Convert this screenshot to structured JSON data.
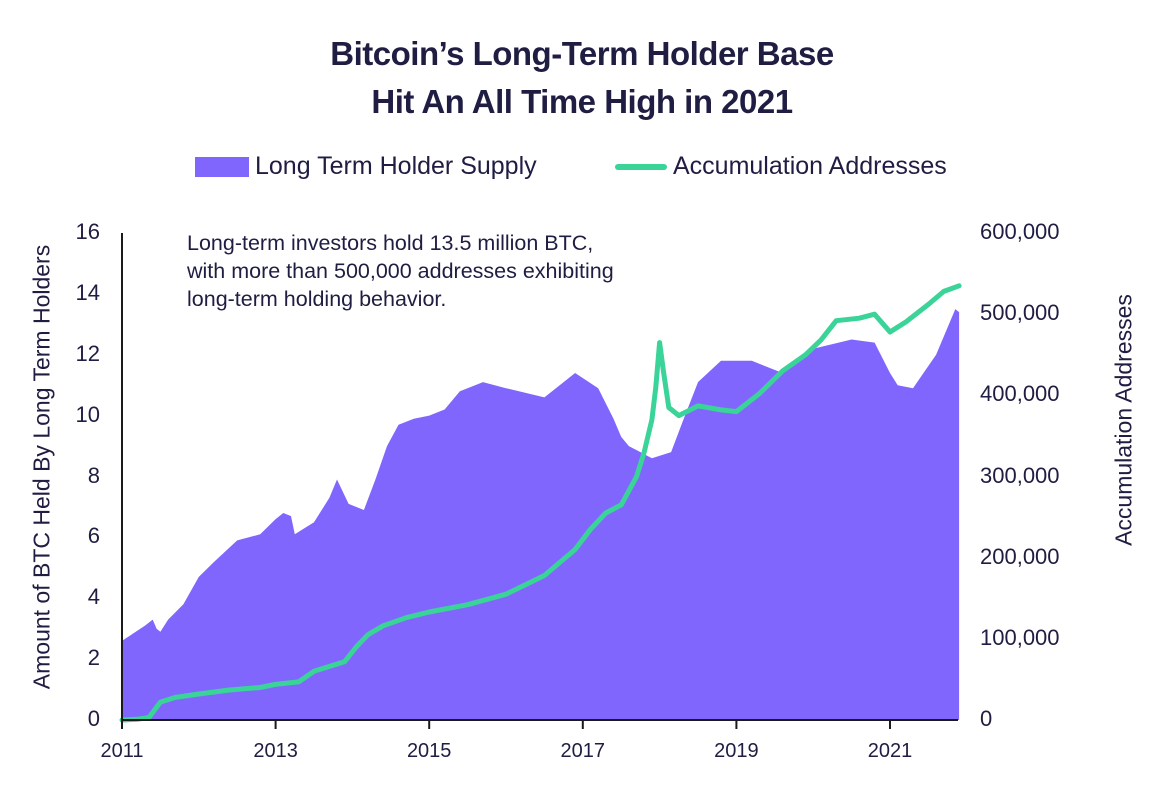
{
  "chart_data": {
    "type": "area+line",
    "title": [
      "Bitcoin’s Long-Term Holder Base",
      "Hit An All Time High in 2021"
    ],
    "legend": {
      "placement": "top-center",
      "entries": [
        "Long Term Holder Supply",
        "Accumulation Addresses"
      ]
    },
    "annotation": [
      "Long-term investors hold 13.5 million BTC,",
      "with more than 500,000 addresses exhibiting",
      "long-term holding behavior."
    ],
    "xlabel": "",
    "ylabel_left": "Amount of BTC Held By Long Term Holders",
    "ylabel_right": "Accumulation Addresses",
    "xlim": [
      2011,
      2021.9
    ],
    "ylim_left": [
      0,
      16
    ],
    "ylim_right": [
      0,
      600000
    ],
    "x_ticks": [
      "2011",
      "2013",
      "2015",
      "2017",
      "2019",
      "2021"
    ],
    "x_tick_values": [
      2011,
      2013,
      2015,
      2017,
      2019,
      2021
    ],
    "y_ticks_left": [
      "0",
      "2",
      "4",
      "6",
      "8",
      "10",
      "12",
      "14",
      "16"
    ],
    "y_tick_values_left": [
      0,
      2,
      4,
      6,
      8,
      10,
      12,
      14,
      16
    ],
    "y_ticks_right": [
      "0",
      "100,000",
      "200,000",
      "300,000",
      "400,000",
      "500,000",
      "600,000"
    ],
    "y_tick_values_right": [
      0,
      100000,
      200000,
      300000,
      400000,
      500000,
      600000
    ],
    "grid": false,
    "colors": {
      "supply": "#8166fd",
      "addresses": "#3ad398",
      "text": "#1f1d42",
      "axis": "#1a1a1a"
    },
    "series": [
      {
        "name": "Long Term Holder Supply",
        "axis": "left",
        "type": "area",
        "x": [
          2011.0,
          2011.15,
          2011.3,
          2011.4,
          2011.45,
          2011.5,
          2011.6,
          2011.8,
          2012.0,
          2012.2,
          2012.5,
          2012.8,
          2013.0,
          2013.1,
          2013.2,
          2013.25,
          2013.5,
          2013.7,
          2013.8,
          2013.95,
          2014.15,
          2014.3,
          2014.45,
          2014.6,
          2014.8,
          2015.0,
          2015.2,
          2015.4,
          2015.7,
          2016.0,
          2016.5,
          2016.9,
          2017.2,
          2017.4,
          2017.5,
          2017.6,
          2017.9,
          2018.15,
          2018.3,
          2018.5,
          2018.8,
          2019.2,
          2019.6,
          2020.0,
          2020.5,
          2020.8,
          2021.0,
          2021.1,
          2021.3,
          2021.6,
          2021.85,
          2021.9
        ],
        "values": [
          2.6,
          2.85,
          3.1,
          3.3,
          3.0,
          2.9,
          3.3,
          3.8,
          4.7,
          5.2,
          5.9,
          6.1,
          6.6,
          6.8,
          6.7,
          6.1,
          6.5,
          7.3,
          7.9,
          7.1,
          6.9,
          7.9,
          9.0,
          9.7,
          9.9,
          10.0,
          10.2,
          10.8,
          11.1,
          10.9,
          10.6,
          11.4,
          10.9,
          9.9,
          9.3,
          9.0,
          8.6,
          8.8,
          9.8,
          11.1,
          11.8,
          11.8,
          11.4,
          12.2,
          12.5,
          12.4,
          11.4,
          11.0,
          10.9,
          12.0,
          13.5,
          13.4
        ]
      },
      {
        "name": "Accumulation Addresses",
        "axis": "right",
        "type": "line",
        "x": [
          2011.0,
          2011.2,
          2011.35,
          2011.5,
          2011.7,
          2012.0,
          2012.4,
          2012.8,
          2013.0,
          2013.3,
          2013.5,
          2013.9,
          2014.05,
          2014.2,
          2014.4,
          2014.7,
          2015.0,
          2015.5,
          2016.0,
          2016.5,
          2016.9,
          2017.1,
          2017.3,
          2017.5,
          2017.7,
          2017.8,
          2017.9,
          2017.95,
          2018.0,
          2018.05,
          2018.12,
          2018.25,
          2018.5,
          2018.8,
          2019.0,
          2019.3,
          2019.6,
          2019.9,
          2020.1,
          2020.3,
          2020.6,
          2020.8,
          2021.0,
          2021.2,
          2021.5,
          2021.7,
          2021.9
        ],
        "values": [
          0,
          1000,
          3000,
          22000,
          28000,
          32000,
          37000,
          40000,
          44000,
          47000,
          60000,
          72000,
          90000,
          105000,
          116000,
          126000,
          133000,
          142000,
          155000,
          178000,
          210000,
          235000,
          255000,
          265000,
          300000,
          330000,
          370000,
          410000,
          465000,
          430000,
          385000,
          375000,
          387000,
          382000,
          380000,
          402000,
          430000,
          450000,
          468000,
          492000,
          495000,
          500000,
          478000,
          490000,
          512000,
          528000,
          535000
        ]
      }
    ]
  }
}
